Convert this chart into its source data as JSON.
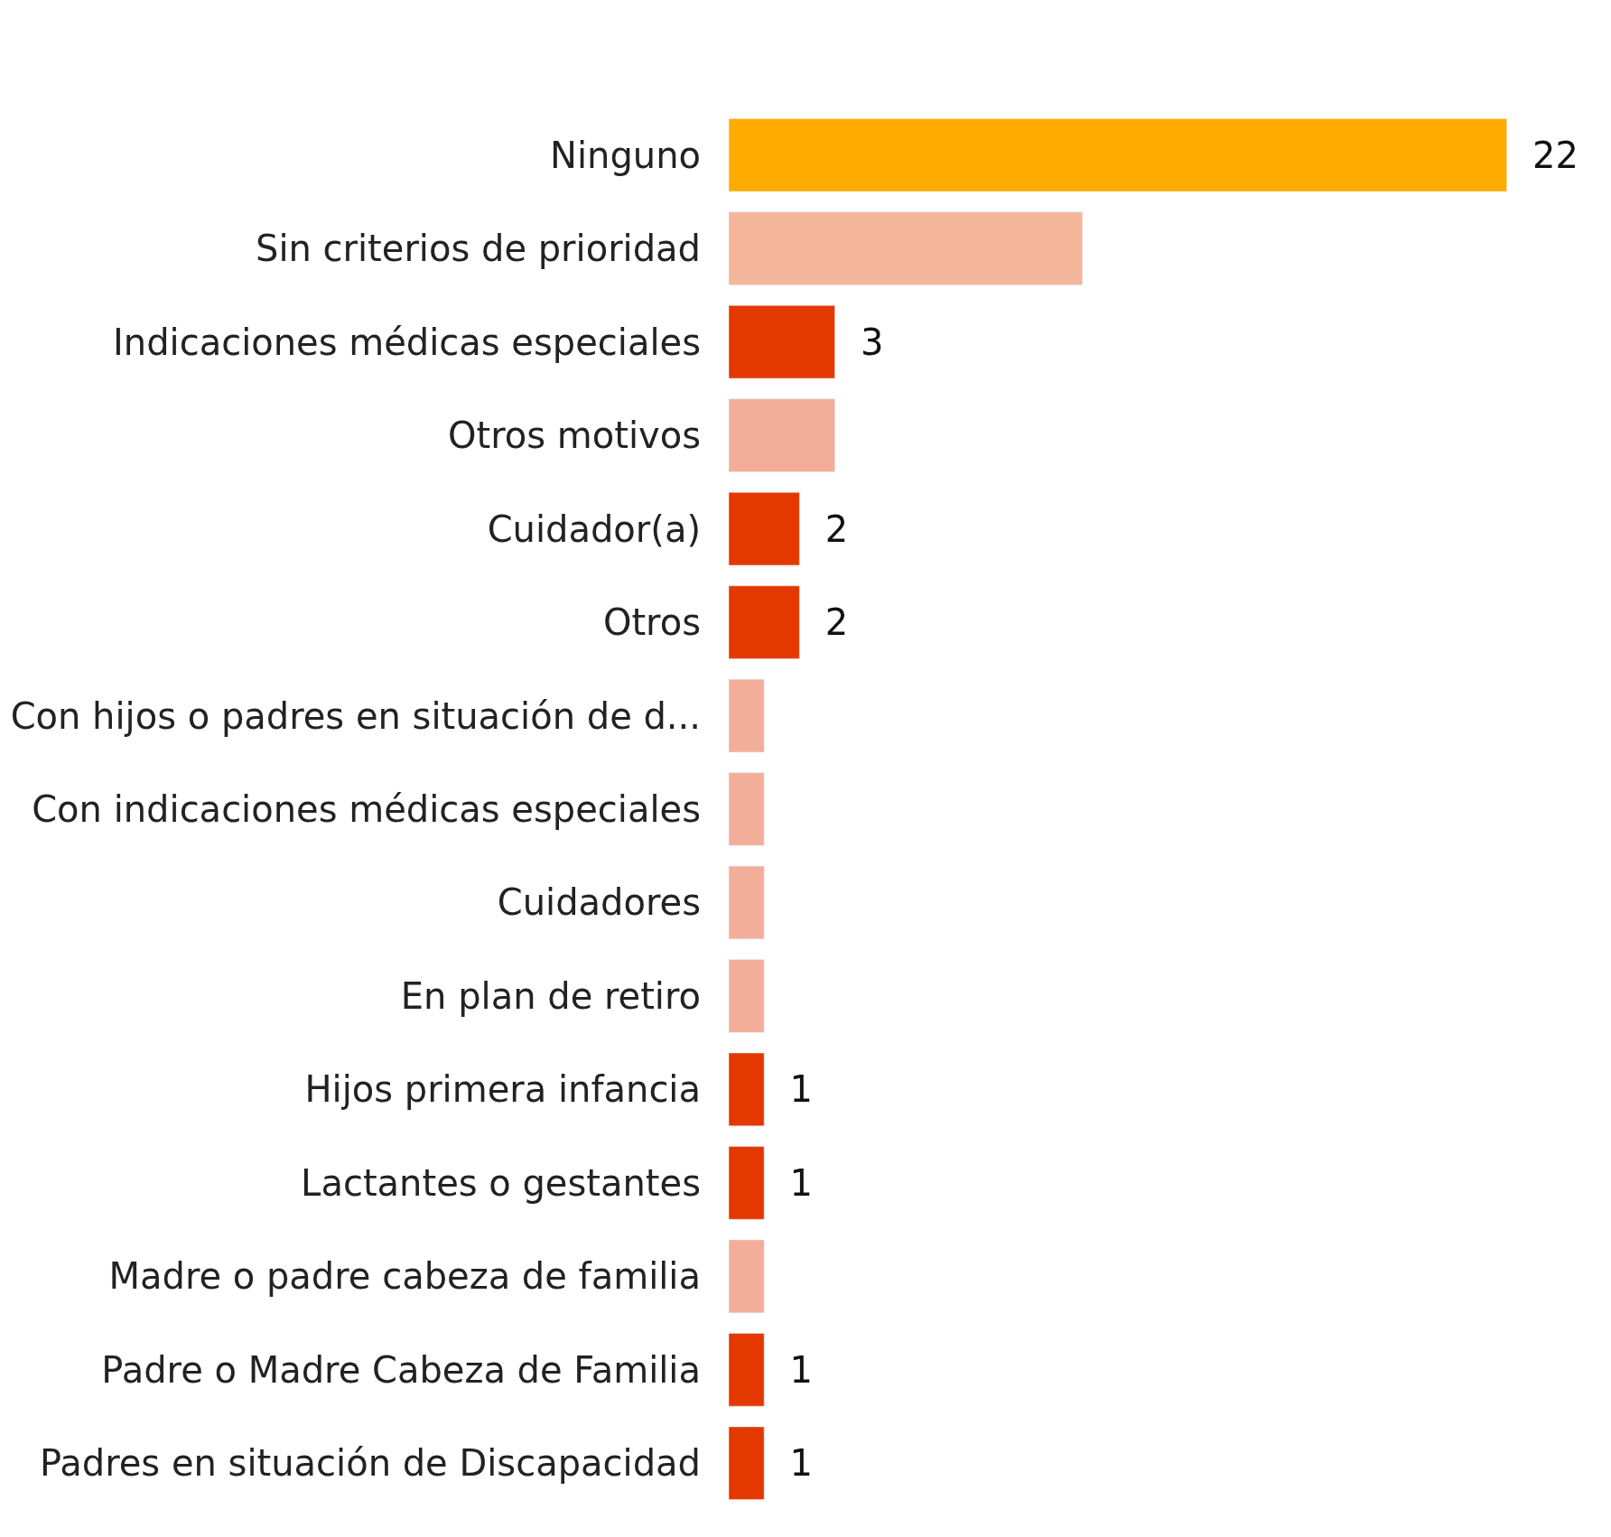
{
  "chart_data": {
    "type": "bar",
    "orientation": "horizontal",
    "categories": [
      "Ninguno",
      "Sin criterios de prioridad",
      "Indicaciones médicas especiales",
      "Otros motivos",
      "Cuidador(a)",
      "Otros",
      "Con hijos o padres en situación de d...",
      "Con indicaciones médicas especiales",
      "Cuidadores",
      "En plan de retiro",
      "Hijos primera infancia",
      "Lactantes o gestantes",
      "Madre o padre cabeza de familia",
      "Padre o Madre Cabeza de Familia",
      "Padres en situación de Discapacidad"
    ],
    "values": [
      22,
      10,
      3,
      3,
      2,
      2,
      1,
      1,
      1,
      1,
      1,
      1,
      1,
      1,
      1
    ],
    "colors": [
      "#ffab00",
      "#f4b69b",
      "#e33900",
      "#f3ae9a",
      "#e33900",
      "#e33900",
      "#f3ae9a",
      "#f3ae9a",
      "#f3ae9a",
      "#f3ae9a",
      "#e33900",
      "#e33900",
      "#f3ae9a",
      "#e33900",
      "#e33900"
    ],
    "value_labels": [
      "22",
      null,
      "3",
      null,
      "2",
      "2",
      null,
      null,
      null,
      null,
      "1",
      "1",
      null,
      "1",
      "1"
    ]
  }
}
